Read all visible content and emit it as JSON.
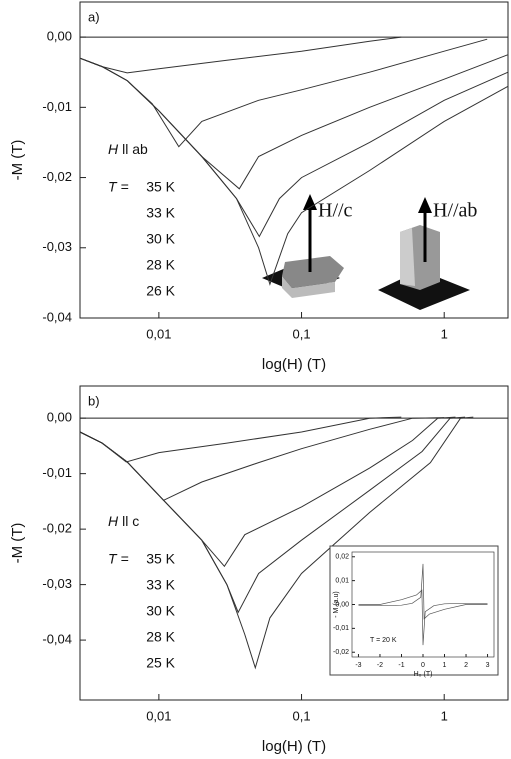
{
  "chart_data": [
    {
      "type": "line",
      "panel_label": "a)",
      "xlabel": "log(H) (T)",
      "ylabel": "-M (T)",
      "xscale": "log",
      "xlim": [
        0.0028,
        2.8
      ],
      "ylim": [
        -0.04,
        0.005
      ],
      "xticks": [
        {
          "value": 0.01,
          "label": "0,01"
        },
        {
          "value": 0.1,
          "label": "0,1"
        },
        {
          "value": 1,
          "label": "1"
        }
      ],
      "yticks": [
        {
          "value": 0,
          "label": "0,00"
        },
        {
          "value": -0.01,
          "label": "-0,01"
        },
        {
          "value": -0.02,
          "label": "-0,02"
        },
        {
          "value": -0.03,
          "label": "-0,03"
        },
        {
          "value": -0.04,
          "label": "-0,04"
        }
      ],
      "zero_line": true,
      "field_symbol": "H",
      "field_direction": "ll ab",
      "legend_prefix": "T =",
      "arrow_labels": [
        "H//c",
        "H//ab"
      ],
      "series": [
        {
          "name": "35 K",
          "color": "#333333",
          "x": [
            0.0028,
            0.004,
            0.006,
            0.01,
            0.03,
            0.1,
            0.3,
            0.5
          ],
          "values": [
            -0.003,
            -0.0042,
            -0.0051,
            -0.0045,
            -0.0033,
            -0.002,
            -0.0006,
            0
          ]
        },
        {
          "name": "33 K",
          "color": "#333333",
          "x": [
            0.0028,
            0.004,
            0.006,
            0.009,
            0.0138,
            0.02,
            0.05,
            0.1,
            0.3,
            1,
            2
          ],
          "values": [
            -0.003,
            -0.0042,
            -0.0062,
            -0.0095,
            -0.0156,
            -0.012,
            -0.009,
            -0.0075,
            -0.005,
            -0.002,
            -0.0003
          ]
        },
        {
          "name": "30 K",
          "color": "#333333",
          "x": [
            0.0028,
            0.004,
            0.006,
            0.01,
            0.02,
            0.0366,
            0.05,
            0.1,
            0.3,
            1,
            2.8
          ],
          "values": [
            -0.003,
            -0.0042,
            -0.0062,
            -0.0105,
            -0.017,
            -0.0216,
            -0.017,
            -0.014,
            -0.01,
            -0.006,
            -0.0025
          ]
        },
        {
          "name": "28 K",
          "color": "#333333",
          "x": [
            0.0028,
            0.004,
            0.006,
            0.01,
            0.02,
            0.035,
            0.0506,
            0.07,
            0.1,
            0.3,
            1,
            2.8
          ],
          "values": [
            -0.003,
            -0.0042,
            -0.0062,
            -0.0105,
            -0.017,
            -0.023,
            -0.0284,
            -0.023,
            -0.02,
            -0.015,
            -0.009,
            -0.005
          ]
        },
        {
          "name": "26 K",
          "color": "#333333",
          "x": [
            0.0028,
            0.004,
            0.006,
            0.01,
            0.02,
            0.035,
            0.05,
            0.06,
            0.08,
            0.1,
            0.3,
            1,
            2.8
          ],
          "values": [
            -0.003,
            -0.0042,
            -0.0062,
            -0.0105,
            -0.017,
            -0.023,
            -0.03,
            -0.0352,
            -0.028,
            -0.025,
            -0.019,
            -0.012,
            -0.007
          ]
        }
      ]
    },
    {
      "type": "line",
      "panel_label": "b)",
      "xlabel": "log(H) (T)",
      "ylabel": "-M (T)",
      "xscale": "log",
      "xlim": [
        0.0028,
        2.8
      ],
      "ylim": [
        -0.0508,
        0.0058
      ],
      "xticks": [
        {
          "value": 0.01,
          "label": "0,01"
        },
        {
          "value": 0.1,
          "label": "0,1"
        },
        {
          "value": 1,
          "label": "1"
        }
      ],
      "yticks": [
        {
          "value": 0,
          "label": "0,00"
        },
        {
          "value": -0.01,
          "label": "-0,01"
        },
        {
          "value": -0.02,
          "label": "-0,02"
        },
        {
          "value": -0.03,
          "label": "-0,03"
        },
        {
          "value": -0.04,
          "label": "-0,04"
        }
      ],
      "zero_line": true,
      "field_symbol": "H",
      "field_direction": "ll c",
      "legend_prefix": "T =",
      "series": [
        {
          "name": "35 K",
          "color": "#333333",
          "x": [
            0.0028,
            0.004,
            0.0059,
            0.01,
            0.03,
            0.1,
            0.3,
            0.5
          ],
          "values": [
            -0.0025,
            -0.0045,
            -0.0079,
            -0.0062,
            -0.0045,
            -0.0025,
            0,
            0.0002
          ]
        },
        {
          "name": "33 K",
          "color": "#333333",
          "x": [
            0.0028,
            0.004,
            0.006,
            0.0108,
            0.02,
            0.05,
            0.1,
            0.3,
            0.6,
            1
          ],
          "values": [
            -0.0025,
            -0.0045,
            -0.0079,
            -0.0148,
            -0.0115,
            -0.008,
            -0.0055,
            -0.002,
            0,
            0.0001
          ]
        },
        {
          "name": "30 K",
          "color": "#333333",
          "x": [
            0.0028,
            0.004,
            0.006,
            0.0108,
            0.02,
            0.0288,
            0.04,
            0.1,
            0.3,
            0.6,
            0.9,
            1.2
          ],
          "values": [
            -0.0025,
            -0.0045,
            -0.0079,
            -0.0148,
            -0.022,
            -0.0267,
            -0.021,
            -0.016,
            -0.009,
            -0.004,
            0,
            0.0002
          ]
        },
        {
          "name": "28 K",
          "color": "#333333",
          "x": [
            0.0028,
            0.004,
            0.006,
            0.0108,
            0.02,
            0.03,
            0.036,
            0.05,
            0.1,
            0.3,
            0.7,
            1.1,
            1.4
          ],
          "values": [
            -0.0025,
            -0.0045,
            -0.0079,
            -0.0148,
            -0.022,
            -0.03,
            -0.035,
            -0.028,
            -0.022,
            -0.013,
            -0.006,
            0,
            0.0002
          ]
        },
        {
          "name": "25 K",
          "color": "#333333",
          "x": [
            0.0028,
            0.004,
            0.006,
            0.0108,
            0.02,
            0.03,
            0.04,
            0.0474,
            0.06,
            0.1,
            0.3,
            0.8,
            1.3,
            1.6
          ],
          "values": [
            -0.0025,
            -0.0045,
            -0.0079,
            -0.0148,
            -0.022,
            -0.03,
            -0.039,
            -0.045,
            -0.036,
            -0.028,
            -0.017,
            -0.008,
            0,
            0.0002
          ]
        }
      ]
    },
    {
      "type": "line",
      "xlabel": "H₀ (T)",
      "ylabel": "- M (a.u)",
      "annotation": "T = 20 K",
      "xlim": [
        -3.3,
        3.3
      ],
      "ylim": [
        -0.022,
        0.022
      ],
      "xticks": [
        -3,
        -2,
        -1,
        0,
        1,
        2,
        3
      ],
      "yticks": [
        {
          "value": 0.02,
          "label": "0,02"
        },
        {
          "value": 0.01,
          "label": "0,01"
        },
        {
          "value": 0,
          "label": "0,00"
        },
        {
          "value": -0.01,
          "label": "-0,01"
        },
        {
          "value": -0.02,
          "label": "-0,02"
        }
      ],
      "series": [
        {
          "color": "#555555",
          "x": [
            -3,
            -2,
            -1,
            -0.5,
            -0.1,
            0,
            0.05,
            0.3,
            1,
            2,
            3
          ],
          "values": [
            -0.0005,
            -0.0005,
            -0.0003,
            0.0005,
            0.003,
            0.017,
            -0.006,
            -0.004,
            -0.002,
            0,
            0
          ]
        },
        {
          "color": "#555555",
          "x": [
            -3,
            -2,
            -1,
            -0.3,
            -0.05,
            0,
            0.1,
            0.5,
            1,
            2,
            3
          ],
          "values": [
            0,
            0,
            0.002,
            0.004,
            0.006,
            -0.017,
            -0.003,
            -0.0005,
            0.0003,
            0.0005,
            0.0005
          ]
        }
      ]
    }
  ]
}
